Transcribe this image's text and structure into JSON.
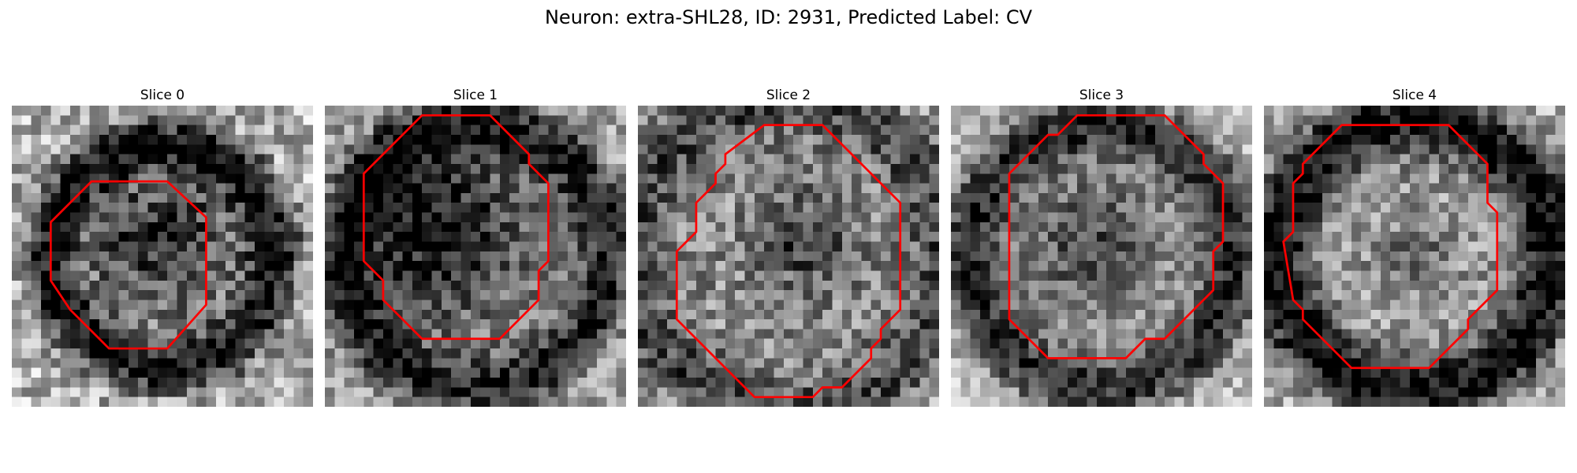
{
  "figure": {
    "suptitle": "Neuron: extra-SHL28, ID: 2931, Predicted Label: CV",
    "contour_color": "#ff0000",
    "colormap": "gray"
  },
  "panels": [
    {
      "title": "Slice 0"
    },
    {
      "title": "Slice 1"
    },
    {
      "title": "Slice 2"
    },
    {
      "title": "Slice 3"
    },
    {
      "title": "Slice 4"
    }
  ]
}
